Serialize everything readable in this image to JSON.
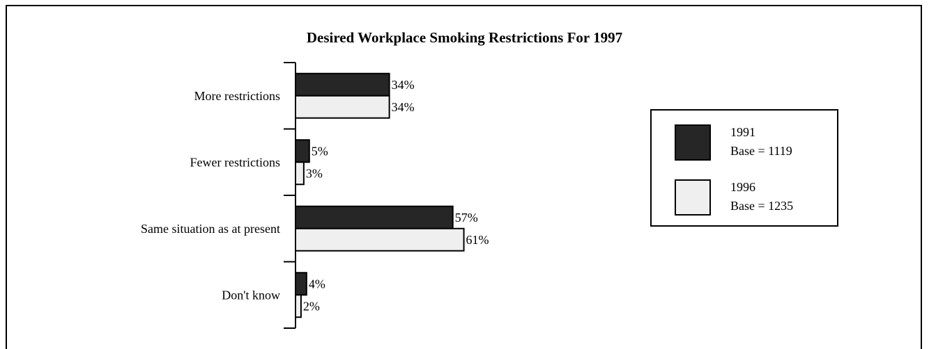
{
  "chart_data": {
    "type": "bar",
    "orientation": "horizontal",
    "title": "Desired Workplace Smoking Restrictions For 1997",
    "categories": [
      "More restrictions",
      "Fewer restrictions",
      "Same situation as at present",
      "Don't know"
    ],
    "series": [
      {
        "name": "1991",
        "base": "Base = 1119",
        "color": "#262626",
        "values": [
          34,
          5,
          57,
          4
        ]
      },
      {
        "name": "1996",
        "base": "Base = 1235",
        "color": "#efefef",
        "values": [
          34,
          3,
          61,
          2
        ]
      }
    ],
    "value_suffix": "%",
    "xlim": [
      0,
      100
    ],
    "grid": false,
    "legend_position": "right"
  }
}
